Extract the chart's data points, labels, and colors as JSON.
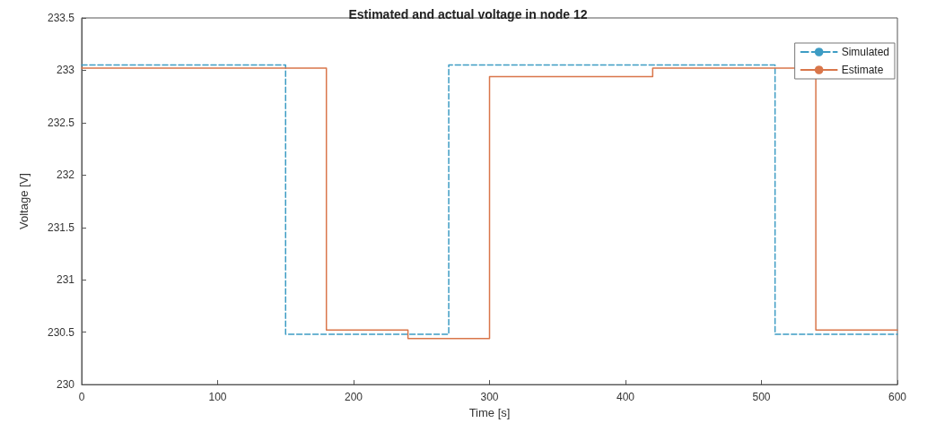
{
  "chart_data": {
    "type": "step",
    "title": "Estimated and actual voltage in node 12",
    "xlabel": "Time [s]",
    "ylabel": "Voltage [V]",
    "series": [
      {
        "name": "Simulated",
        "color": "#3d9cc4",
        "line_style": "dashed",
        "x": [
          0,
          150,
          270,
          510,
          600
        ],
        "values": [
          233.05,
          230.48,
          233.05,
          230.48,
          230.48
        ]
      },
      {
        "name": "Estimate",
        "color": "#d9764a",
        "line_style": "solid",
        "x": [
          0,
          180,
          240,
          300,
          420,
          540,
          600
        ],
        "values": [
          233.02,
          230.52,
          230.44,
          232.94,
          233.02,
          230.52,
          230.52
        ]
      }
    ],
    "xlim": [
      0,
      600
    ],
    "xticks": [
      0,
      100,
      200,
      300,
      400,
      500,
      600
    ],
    "ylim": [
      230,
      233.5
    ],
    "yticks": [
      230,
      230.5,
      231,
      231.5,
      232,
      232.5,
      233,
      233.5
    ],
    "grid": false,
    "legend": "top right",
    "marker": "none"
  }
}
